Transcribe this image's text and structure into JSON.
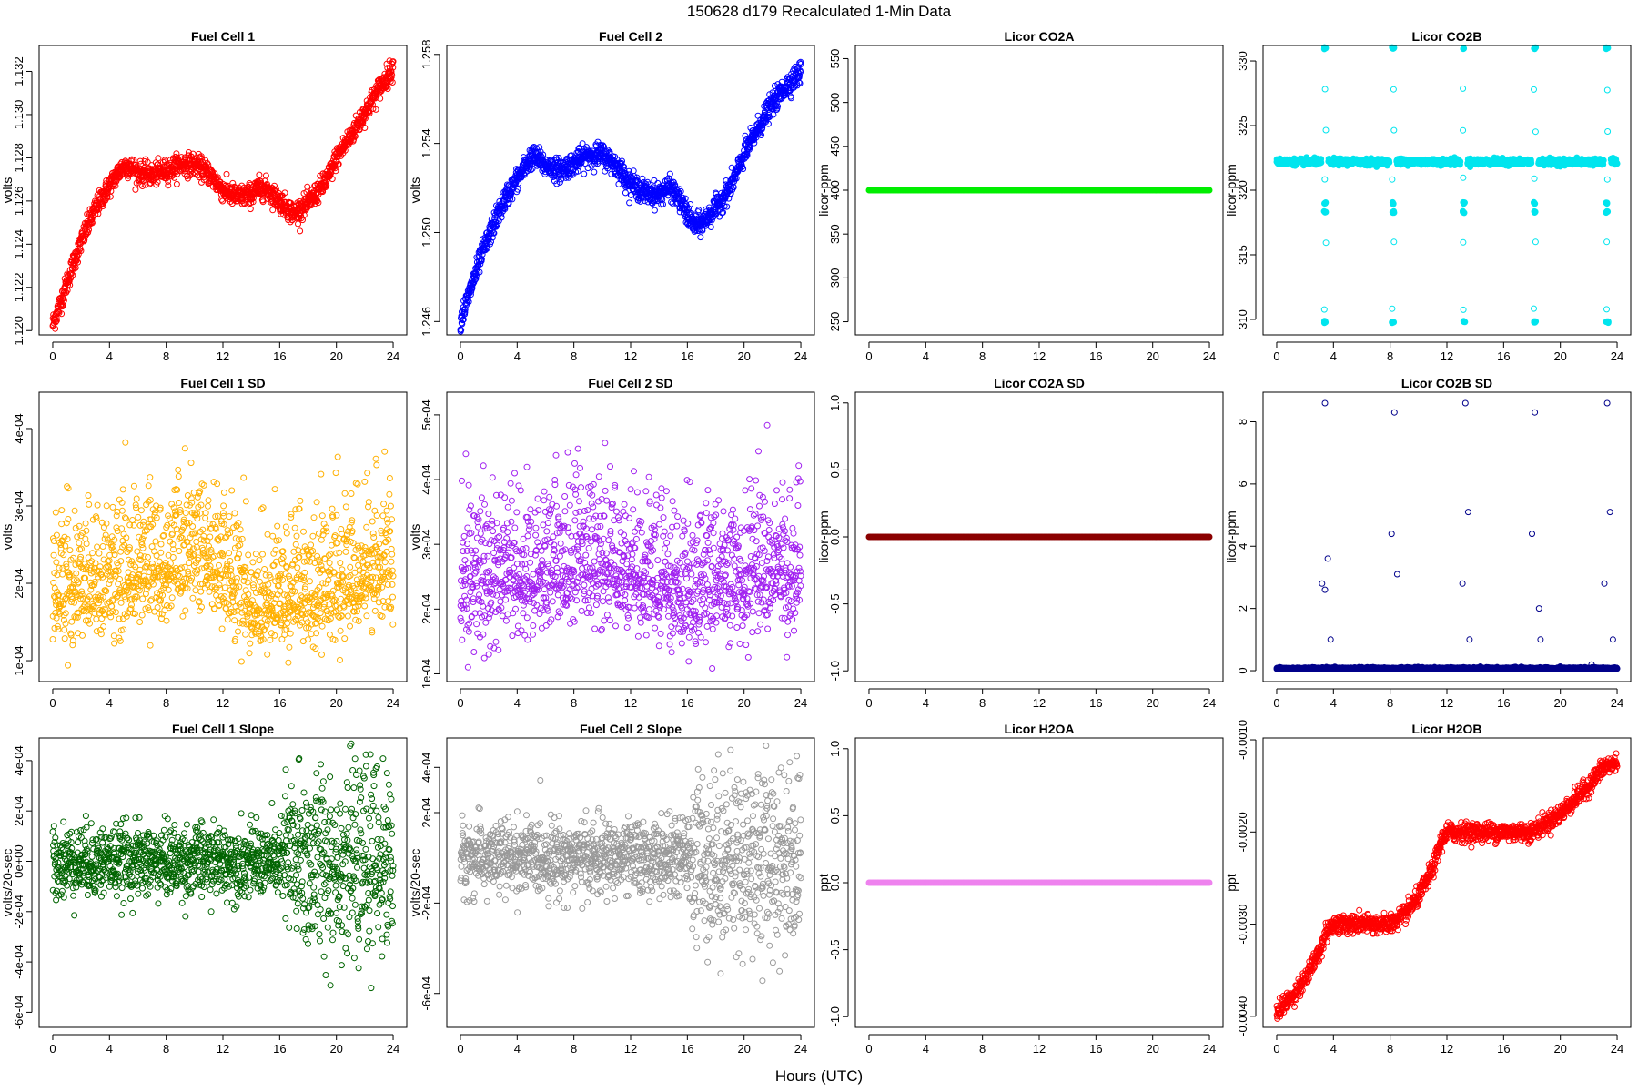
{
  "figure": {
    "title": "150628   d179   Recalculated 1-Min Data",
    "xlabel": "Hours (UTC)"
  },
  "chart_data": [
    {
      "id": "fc1",
      "type": "scatter",
      "title": "Fuel Cell 1",
      "ylabel": "volts",
      "color": "#ff0000",
      "ylim": [
        1.1198,
        1.1332
      ],
      "yticks": [
        1.12,
        1.122,
        1.124,
        1.126,
        1.128,
        1.13,
        1.132
      ],
      "ytick_labels": [
        "1.120",
        "1.122",
        "1.124",
        "1.126",
        "1.128",
        "1.130",
        "1.132"
      ],
      "xlim": [
        -0.96,
        24.96
      ],
      "xticks": [
        0,
        4,
        8,
        12,
        16,
        20,
        24
      ],
      "shape": "curve",
      "noise": 0.00025,
      "series_x": [
        0,
        0.5,
        1,
        1.5,
        2,
        2.5,
        3,
        3.5,
        4,
        4.5,
        5,
        5.5,
        6,
        7,
        8,
        9,
        10,
        11,
        12,
        13,
        14,
        14.5,
        15,
        15.5,
        16,
        16.5,
        17,
        18,
        19,
        19.5,
        20,
        21,
        22,
        23,
        24
      ],
      "series_y": [
        1.1203,
        1.1212,
        1.1222,
        1.1232,
        1.1241,
        1.1249,
        1.1256,
        1.1262,
        1.1267,
        1.1272,
        1.1276,
        1.1276,
        1.1273,
        1.1272,
        1.1274,
        1.1277,
        1.1277,
        1.1273,
        1.1265,
        1.1262,
        1.1263,
        1.1266,
        1.1266,
        1.1263,
        1.126,
        1.1257,
        1.1254,
        1.1259,
        1.1267,
        1.1272,
        1.128,
        1.129,
        1.1301,
        1.1312,
        1.1322
      ]
    },
    {
      "id": "fc2",
      "type": "scatter",
      "title": "Fuel Cell 2",
      "ylabel": "volts",
      "color": "#0000ff",
      "ylim": [
        1.2454,
        1.2584
      ],
      "yticks": [
        1.246,
        1.25,
        1.254,
        1.258
      ],
      "ytick_labels": [
        "1.246",
        "1.250",
        "1.254",
        "1.258"
      ],
      "xlim": [
        -0.96,
        24.96
      ],
      "xticks": [
        0,
        4,
        8,
        12,
        16,
        20,
        24
      ],
      "shape": "curve",
      "noise": 0.00025,
      "series_x": [
        0,
        0.5,
        1,
        1.5,
        2,
        2.5,
        3,
        3.5,
        4,
        4.5,
        5,
        5.5,
        6,
        7,
        8,
        9,
        10,
        11,
        12,
        13,
        14,
        14.5,
        15,
        15.5,
        16,
        16.5,
        17,
        18,
        19,
        19.5,
        20,
        21,
        22,
        23,
        24
      ],
      "series_y": [
        1.246,
        1.247,
        1.248,
        1.249,
        1.2498,
        1.2506,
        1.2513,
        1.2519,
        1.2524,
        1.2529,
        1.2534,
        1.2533,
        1.253,
        1.2528,
        1.2531,
        1.2535,
        1.2535,
        1.253,
        1.2522,
        1.2518,
        1.2517,
        1.252,
        1.2519,
        1.2514,
        1.2508,
        1.2503,
        1.2504,
        1.2511,
        1.252,
        1.2527,
        1.2535,
        1.2547,
        1.2558,
        1.2566,
        1.2572
      ]
    },
    {
      "id": "co2a",
      "type": "scatter",
      "title": "Licor CO2A",
      "ylabel": "licor-ppm",
      "color": "#00ee00",
      "ylim": [
        235,
        565
      ],
      "yticks": [
        250,
        300,
        350,
        400,
        450,
        500,
        550
      ],
      "ytick_labels": [
        "250",
        "300",
        "350",
        "400",
        "450",
        "500",
        "550"
      ],
      "xlim": [
        -0.96,
        24.96
      ],
      "xticks": [
        0,
        4,
        8,
        12,
        16,
        20,
        24
      ],
      "shape": "flat",
      "value": 400
    },
    {
      "id": "co2b",
      "type": "scatter",
      "title": "Licor CO2B",
      "ylabel": "licor-ppm",
      "color": "#00e5ee",
      "ylim": [
        308.8,
        331.2
      ],
      "yticks": [
        310,
        315,
        320,
        325,
        330
      ],
      "ytick_labels": [
        "310",
        "315",
        "320",
        "325",
        "330"
      ],
      "xlim": [
        -0.96,
        24.96
      ],
      "xticks": [
        0,
        4,
        8,
        12,
        16,
        20,
        24
      ],
      "shape": "calib",
      "base": 322.2,
      "noise": 0.12,
      "events": [
        3.4,
        8.2,
        13.2,
        18.2,
        23.3
      ],
      "event_levels": [
        331,
        309.8,
        318.3,
        319.0,
        327.8,
        324.6,
        316.0,
        320.9,
        310.8
      ]
    },
    {
      "id": "fc1sd",
      "type": "scatter",
      "title": "Fuel Cell 1 SD",
      "ylabel": "volts",
      "color": "#ffb000",
      "ylim": [
        7.3e-05,
        0.000447
      ],
      "yticks": [
        0.0001,
        0.0002,
        0.0003,
        0.0004
      ],
      "ytick_labels": [
        "1e-04",
        "2e-04",
        "3e-04",
        "4e-04"
      ],
      "xlim": [
        -0.96,
        24.96
      ],
      "xticks": [
        0,
        4,
        8,
        12,
        16,
        20,
        24
      ],
      "shape": "scatter",
      "noise": 4.5e-05,
      "maxv": 0.00044,
      "minv": 7.8e-05,
      "series_x": [
        0,
        4,
        8,
        10,
        12,
        14,
        16,
        20,
        24
      ],
      "series_y": [
        0.000185,
        0.000195,
        0.000225,
        0.00024,
        0.000215,
        0.000175,
        0.000175,
        0.0002,
        0.00022
      ]
    },
    {
      "id": "fc2sd",
      "type": "scatter",
      "title": "Fuel Cell 2 SD",
      "ylabel": "volts",
      "color": "#a020f0",
      "ylim": [
        8.8e-05,
        0.000535
      ],
      "yticks": [
        0.0001,
        0.0002,
        0.0003,
        0.0004,
        0.0005
      ],
      "ytick_labels": [
        "1e-04",
        "2e-04",
        "3e-04",
        "4e-04",
        "5e-04"
      ],
      "xlim": [
        -0.96,
        24.96
      ],
      "xticks": [
        0,
        4,
        8,
        12,
        16,
        20,
        24
      ],
      "shape": "scatter",
      "noise": 6e-05,
      "maxv": 0.00053,
      "minv": 9.5e-05,
      "series_x": [
        0,
        4,
        8,
        12,
        16,
        20,
        24
      ],
      "series_y": [
        0.000235,
        0.00025,
        0.00027,
        0.00026,
        0.000225,
        0.00025,
        0.00027
      ]
    },
    {
      "id": "co2asd",
      "type": "scatter",
      "title": "Licor CO2A SD",
      "ylabel": "licor-ppm",
      "color": "#8b0000",
      "ylim": [
        -1.08,
        1.08
      ],
      "yticks": [
        -1.0,
        -0.5,
        0.0,
        0.5,
        1.0
      ],
      "ytick_labels": [
        "-1.0",
        "-0.5",
        "0.0",
        "0.5",
        "1.0"
      ],
      "xlim": [
        -0.96,
        24.96
      ],
      "xticks": [
        0,
        4,
        8,
        12,
        16,
        20,
        24
      ],
      "shape": "flat",
      "value": 0
    },
    {
      "id": "co2bsd",
      "type": "scatter",
      "title": "Licor CO2B SD",
      "ylabel": "licor-ppm",
      "color": "#00008b",
      "ylim": [
        -0.35,
        8.95
      ],
      "yticks": [
        0,
        2,
        4,
        6,
        8
      ],
      "ytick_labels": [
        "0",
        "2",
        "4",
        "6",
        "8"
      ],
      "xlim": [
        -0.96,
        24.96
      ],
      "xticks": [
        0,
        4,
        8,
        12,
        16,
        20,
        24
      ],
      "shape": "spikes",
      "base": 0.06,
      "noise": 0.02,
      "spikes": [
        [
          3.2,
          2.8
        ],
        [
          3.4,
          2.6
        ],
        [
          3.6,
          3.6
        ],
        [
          3.8,
          1.0
        ],
        [
          3.4,
          8.6
        ],
        [
          8.1,
          4.4
        ],
        [
          8.3,
          8.3
        ],
        [
          8.5,
          3.1
        ],
        [
          13.1,
          2.8
        ],
        [
          13.3,
          8.6
        ],
        [
          13.5,
          5.1
        ],
        [
          13.6,
          1.0
        ],
        [
          18.0,
          4.4
        ],
        [
          18.2,
          8.3
        ],
        [
          18.5,
          2.0
        ],
        [
          18.6,
          1.0
        ],
        [
          22.2,
          0.2
        ],
        [
          23.1,
          2.8
        ],
        [
          23.3,
          8.6
        ],
        [
          23.5,
          5.1
        ],
        [
          23.7,
          1.0
        ]
      ]
    },
    {
      "id": "fc1slope",
      "type": "scatter",
      "title": "Fuel Cell 1 Slope",
      "ylabel": "volts/20-sec",
      "color": "#006400",
      "ylim": [
        -0.00066,
        0.00049
      ],
      "yticks": [
        -0.0006,
        -0.0004,
        -0.0002,
        0.0,
        0.0002,
        0.0004
      ],
      "ytick_labels": [
        "-6e-04",
        "-4e-04",
        "-2e-04",
        "0e+00",
        "2e-04",
        "4e-04"
      ],
      "xlim": [
        -0.96,
        24.96
      ],
      "xticks": [
        0,
        4,
        8,
        12,
        16,
        20,
        24
      ],
      "shape": "slope",
      "noise": 7e-05,
      "noise_late": 0.00018,
      "split": 16.3
    },
    {
      "id": "fc2slope",
      "type": "scatter",
      "title": "Fuel Cell 2 Slope",
      "ylabel": "volts/20-sec",
      "color": "#999999",
      "ylim": [
        -0.00075,
        0.00053
      ],
      "yticks": [
        -0.0006,
        -0.0002,
        0.0002,
        0.0004
      ],
      "ytick_labels": [
        "-6e-04",
        "-2e-04",
        "2e-04",
        "4e-04"
      ],
      "xlim": [
        -0.96,
        24.96
      ],
      "xticks": [
        0,
        4,
        8,
        12,
        16,
        20,
        24
      ],
      "shape": "slope",
      "noise": 8e-05,
      "noise_late": 0.0002,
      "split": 16.3
    },
    {
      "id": "h2oa",
      "type": "scatter",
      "title": "Licor H2OA",
      "ylabel": "ppt",
      "color": "#ee82ee",
      "ylim": [
        -1.08,
        1.08
      ],
      "yticks": [
        -1.0,
        -0.5,
        0.0,
        0.5,
        1.0
      ],
      "ytick_labels": [
        "-1.0",
        "-0.5",
        "0.0",
        "0.5",
        "1.0"
      ],
      "xlim": [
        -0.96,
        24.96
      ],
      "xticks": [
        0,
        4,
        8,
        12,
        16,
        20,
        24
      ],
      "shape": "flat",
      "value": 0
    },
    {
      "id": "h2ob",
      "type": "scatter",
      "title": "Licor H2OB",
      "ylabel": "ppt",
      "color": "#ff0000",
      "ylim": [
        -0.00412,
        -0.00098
      ],
      "yticks": [
        -0.004,
        -0.003,
        -0.002,
        -0.001
      ],
      "ytick_labels": [
        "-0.0040",
        "-0.0030",
        "-0.0020",
        "-0.0010"
      ],
      "xlim": [
        -0.96,
        24.96
      ],
      "xticks": [
        0,
        4,
        8,
        12,
        16,
        20,
        24
      ],
      "shape": "curve",
      "noise": 5e-05,
      "series_x": [
        0,
        1,
        2,
        3,
        3.6,
        4,
        5,
        6,
        7,
        8,
        9,
        10,
        11,
        11.6,
        12,
        13,
        14,
        15,
        16,
        17,
        18,
        19,
        20,
        21,
        22,
        23,
        24
      ],
      "series_y": [
        -0.00395,
        -0.0038,
        -0.0036,
        -0.0033,
        -0.00305,
        -0.003,
        -0.003,
        -0.003,
        -0.003,
        -0.003,
        -0.0029,
        -0.0027,
        -0.0024,
        -0.0021,
        -0.002,
        -0.002,
        -0.002,
        -0.002,
        -0.002,
        -0.002,
        -0.002,
        -0.0019,
        -0.0018,
        -0.00165,
        -0.0015,
        -0.0013,
        -0.00125
      ]
    }
  ]
}
